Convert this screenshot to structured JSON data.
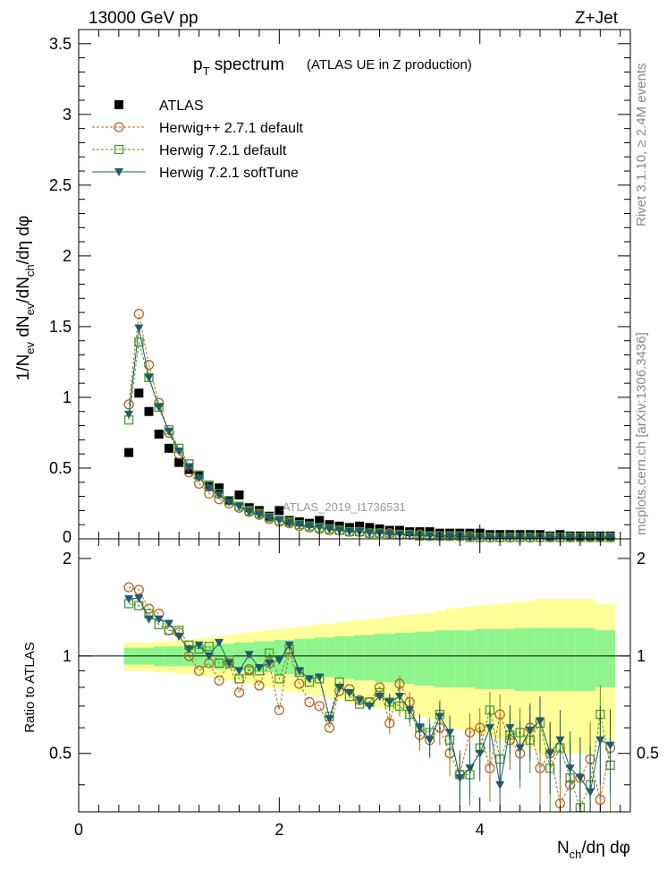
{
  "header": {
    "left": "13000 GeV pp",
    "right": "Z+Jet"
  },
  "title_main": "p",
  "title_sub": "T",
  "title_rest": " spectrum",
  "title_paren": "(ATLAS UE in Z production)",
  "ylabel_main": "1/N_ev dN_ev/dN_ch/dη dφ",
  "ylabel_ratio": "Ratio to ATLAS",
  "xlabel": "N_ch/dη dφ",
  "watermark": "ATLAS_2019_I1736531",
  "side_text_1": "Rivet 3.1.10, ≥ 2.4M events",
  "side_text_2": "mcplots.cern.ch [arXiv:1306.3436]",
  "colors": {
    "atlas": "#000000",
    "hwpp": "#b5651d",
    "hw721": "#4a9a2a",
    "soft": "#1f5a6e",
    "band_inner": "#8ef58e",
    "band_outer": "#ffff99"
  },
  "chart_data": {
    "type": "scatter",
    "x": [
      0.5,
      0.6,
      0.7,
      0.8,
      0.9,
      1.0,
      1.1,
      1.2,
      1.3,
      1.4,
      1.5,
      1.6,
      1.7,
      1.8,
      1.9,
      2.0,
      2.1,
      2.2,
      2.3,
      2.4,
      2.5,
      2.6,
      2.7,
      2.8,
      2.9,
      3.0,
      3.1,
      3.2,
      3.3,
      3.4,
      3.5,
      3.6,
      3.7,
      3.8,
      3.9,
      4.0,
      4.1,
      4.2,
      4.3,
      4.4,
      4.5,
      4.6,
      4.7,
      4.8,
      4.9,
      5.0,
      5.1,
      5.2,
      5.3
    ],
    "xlim": [
      0,
      5.5
    ],
    "main": {
      "ylim": [
        0,
        3.6
      ],
      "yticks": [
        "0.5",
        "1",
        "1.5",
        "2",
        "2.5",
        "3",
        "3.5"
      ],
      "ytick_values": [
        0.5,
        1,
        1.5,
        2,
        2.5,
        3,
        3.5
      ],
      "series": [
        {
          "name": "ATLAS",
          "key": "atlas",
          "marker": "square-filled",
          "values": [
            0.61,
            1.03,
            0.9,
            0.74,
            0.64,
            0.54,
            0.49,
            0.45,
            0.37,
            0.36,
            0.27,
            0.31,
            0.22,
            0.2,
            0.16,
            0.2,
            0.13,
            0.12,
            0.11,
            0.13,
            0.1,
            0.09,
            0.08,
            0.09,
            0.08,
            0.07,
            0.06,
            0.06,
            0.05,
            0.05,
            0.05,
            0.04,
            0.04,
            0.04,
            0.04,
            0.04,
            0.03,
            0.03,
            0.03,
            0.03,
            0.03,
            0.03,
            0.02,
            0.03,
            0.02,
            0.02,
            0.02,
            0.02,
            0.02
          ]
        },
        {
          "name": "Herwig++ 2.7.1 default",
          "key": "hwpp",
          "marker": "circle-open",
          "values": [
            0.95,
            1.59,
            1.23,
            0.96,
            0.75,
            0.6,
            0.47,
            0.39,
            0.32,
            0.28,
            0.25,
            0.22,
            0.19,
            0.17,
            0.14,
            0.12,
            0.11,
            0.09,
            0.08,
            0.07,
            0.06,
            0.06,
            0.05,
            0.05,
            0.04,
            0.04,
            0.04,
            0.03,
            0.03,
            0.03,
            0.02,
            0.02,
            0.02,
            0.02,
            0.02,
            0.01,
            0.01,
            0.01,
            0.01,
            0.01,
            0.01,
            0.01,
            0.01,
            0.01,
            0.01,
            0.01,
            0.01,
            0.01,
            0.01
          ]
        },
        {
          "name": "Herwig 7.2.1 default",
          "key": "hw721",
          "marker": "square-open",
          "values": [
            0.84,
            1.39,
            1.14,
            0.93,
            0.77,
            0.64,
            0.53,
            0.45,
            0.38,
            0.32,
            0.27,
            0.23,
            0.2,
            0.18,
            0.15,
            0.13,
            0.12,
            0.1,
            0.09,
            0.08,
            0.07,
            0.06,
            0.05,
            0.05,
            0.04,
            0.04,
            0.03,
            0.03,
            0.03,
            0.02,
            0.02,
            0.02,
            0.02,
            0.02,
            0.01,
            0.01,
            0.01,
            0.01,
            0.01,
            0.01,
            0.01,
            0.01,
            0.01,
            0.01,
            0.01,
            0.01,
            0.01,
            0.01,
            0.01
          ]
        },
        {
          "name": "Herwig 7.2.1 softTune",
          "key": "soft",
          "marker": "triangle-down-filled",
          "values": [
            0.88,
            1.49,
            1.14,
            0.93,
            0.76,
            0.62,
            0.51,
            0.43,
            0.36,
            0.31,
            0.26,
            0.23,
            0.19,
            0.17,
            0.15,
            0.13,
            0.11,
            0.1,
            0.09,
            0.08,
            0.07,
            0.06,
            0.05,
            0.05,
            0.04,
            0.04,
            0.03,
            0.03,
            0.03,
            0.02,
            0.02,
            0.02,
            0.02,
            0.02,
            0.01,
            0.01,
            0.01,
            0.01,
            0.01,
            0.01,
            0.01,
            0.01,
            0.01,
            0.01,
            0.01,
            0.01,
            0.01,
            0.01,
            0.01
          ]
        }
      ]
    },
    "ratio": {
      "ylim": [
        0.33,
        2.3
      ],
      "yticks": [
        "0.5",
        "1",
        "2"
      ],
      "ytick_values": [
        0.5,
        1,
        2
      ],
      "band_inner": [
        0.06,
        0.06,
        0.06,
        0.07,
        0.07,
        0.07,
        0.07,
        0.08,
        0.08,
        0.09,
        0.09,
        0.1,
        0.1,
        0.11,
        0.11,
        0.12,
        0.12,
        0.13,
        0.13,
        0.14,
        0.14,
        0.15,
        0.15,
        0.16,
        0.16,
        0.17,
        0.17,
        0.18,
        0.18,
        0.19,
        0.19,
        0.2,
        0.2,
        0.2,
        0.2,
        0.21,
        0.21,
        0.21,
        0.21,
        0.22,
        0.22,
        0.22,
        0.22,
        0.22,
        0.22,
        0.22,
        0.22,
        0.2,
        0.2
      ],
      "band_outer": [
        0.1,
        0.1,
        0.1,
        0.11,
        0.11,
        0.12,
        0.12,
        0.13,
        0.14,
        0.15,
        0.16,
        0.17,
        0.18,
        0.19,
        0.2,
        0.21,
        0.22,
        0.23,
        0.24,
        0.25,
        0.26,
        0.27,
        0.28,
        0.29,
        0.3,
        0.31,
        0.32,
        0.33,
        0.34,
        0.35,
        0.36,
        0.38,
        0.4,
        0.41,
        0.42,
        0.43,
        0.44,
        0.45,
        0.46,
        0.47,
        0.48,
        0.5,
        0.5,
        0.5,
        0.5,
        0.5,
        0.5,
        0.45,
        0.45
      ],
      "series": [
        {
          "key": "hwpp",
          "values": [
            1.63,
            1.6,
            1.4,
            1.35,
            1.2,
            1.18,
            1.0,
            0.9,
            0.95,
            0.84,
            0.95,
            0.77,
            0.91,
            0.81,
            0.95,
            0.68,
            1.03,
            0.82,
            0.72,
            0.7,
            0.6,
            0.78,
            0.79,
            0.73,
            0.72,
            0.8,
            0.62,
            0.82,
            0.72,
            0.57,
            0.55,
            0.6,
            0.5,
            0.43,
            0.58,
            0.6,
            0.45,
            0.66,
            0.55,
            0.5,
            0.6,
            0.45,
            0.5,
            0.35,
            0.4,
            0.42,
            0.48,
            0.36,
            0.52
          ]
        },
        {
          "key": "hw721",
          "values": [
            1.45,
            1.43,
            1.35,
            1.25,
            1.2,
            1.2,
            1.08,
            1.05,
            1.07,
            0.95,
            0.97,
            0.85,
            0.9,
            0.9,
            1.02,
            0.85,
            1.05,
            0.89,
            0.83,
            0.85,
            0.65,
            0.83,
            0.75,
            0.71,
            0.72,
            0.77,
            0.72,
            0.7,
            0.66,
            0.6,
            0.58,
            0.66,
            0.55,
            0.43,
            0.43,
            0.52,
            0.68,
            0.48,
            0.57,
            0.58,
            0.55,
            0.62,
            0.45,
            0.52,
            0.42,
            0.34,
            0.4,
            0.66,
            0.46
          ]
        },
        {
          "key": "soft",
          "values": [
            1.5,
            1.51,
            1.3,
            1.3,
            1.26,
            1.15,
            1.05,
            1.08,
            1.0,
            1.1,
            0.95,
            0.9,
            1.01,
            0.92,
            0.95,
            0.97,
            1.08,
            0.9,
            0.85,
            0.86,
            0.64,
            0.8,
            0.77,
            0.73,
            0.7,
            0.75,
            0.72,
            0.75,
            0.68,
            0.6,
            0.55,
            0.65,
            0.58,
            0.42,
            0.45,
            0.5,
            0.6,
            0.4,
            0.6,
            0.52,
            0.59,
            0.63,
            0.5,
            0.55,
            0.45,
            0.42,
            0.38,
            0.55,
            0.53
          ]
        }
      ]
    }
  }
}
